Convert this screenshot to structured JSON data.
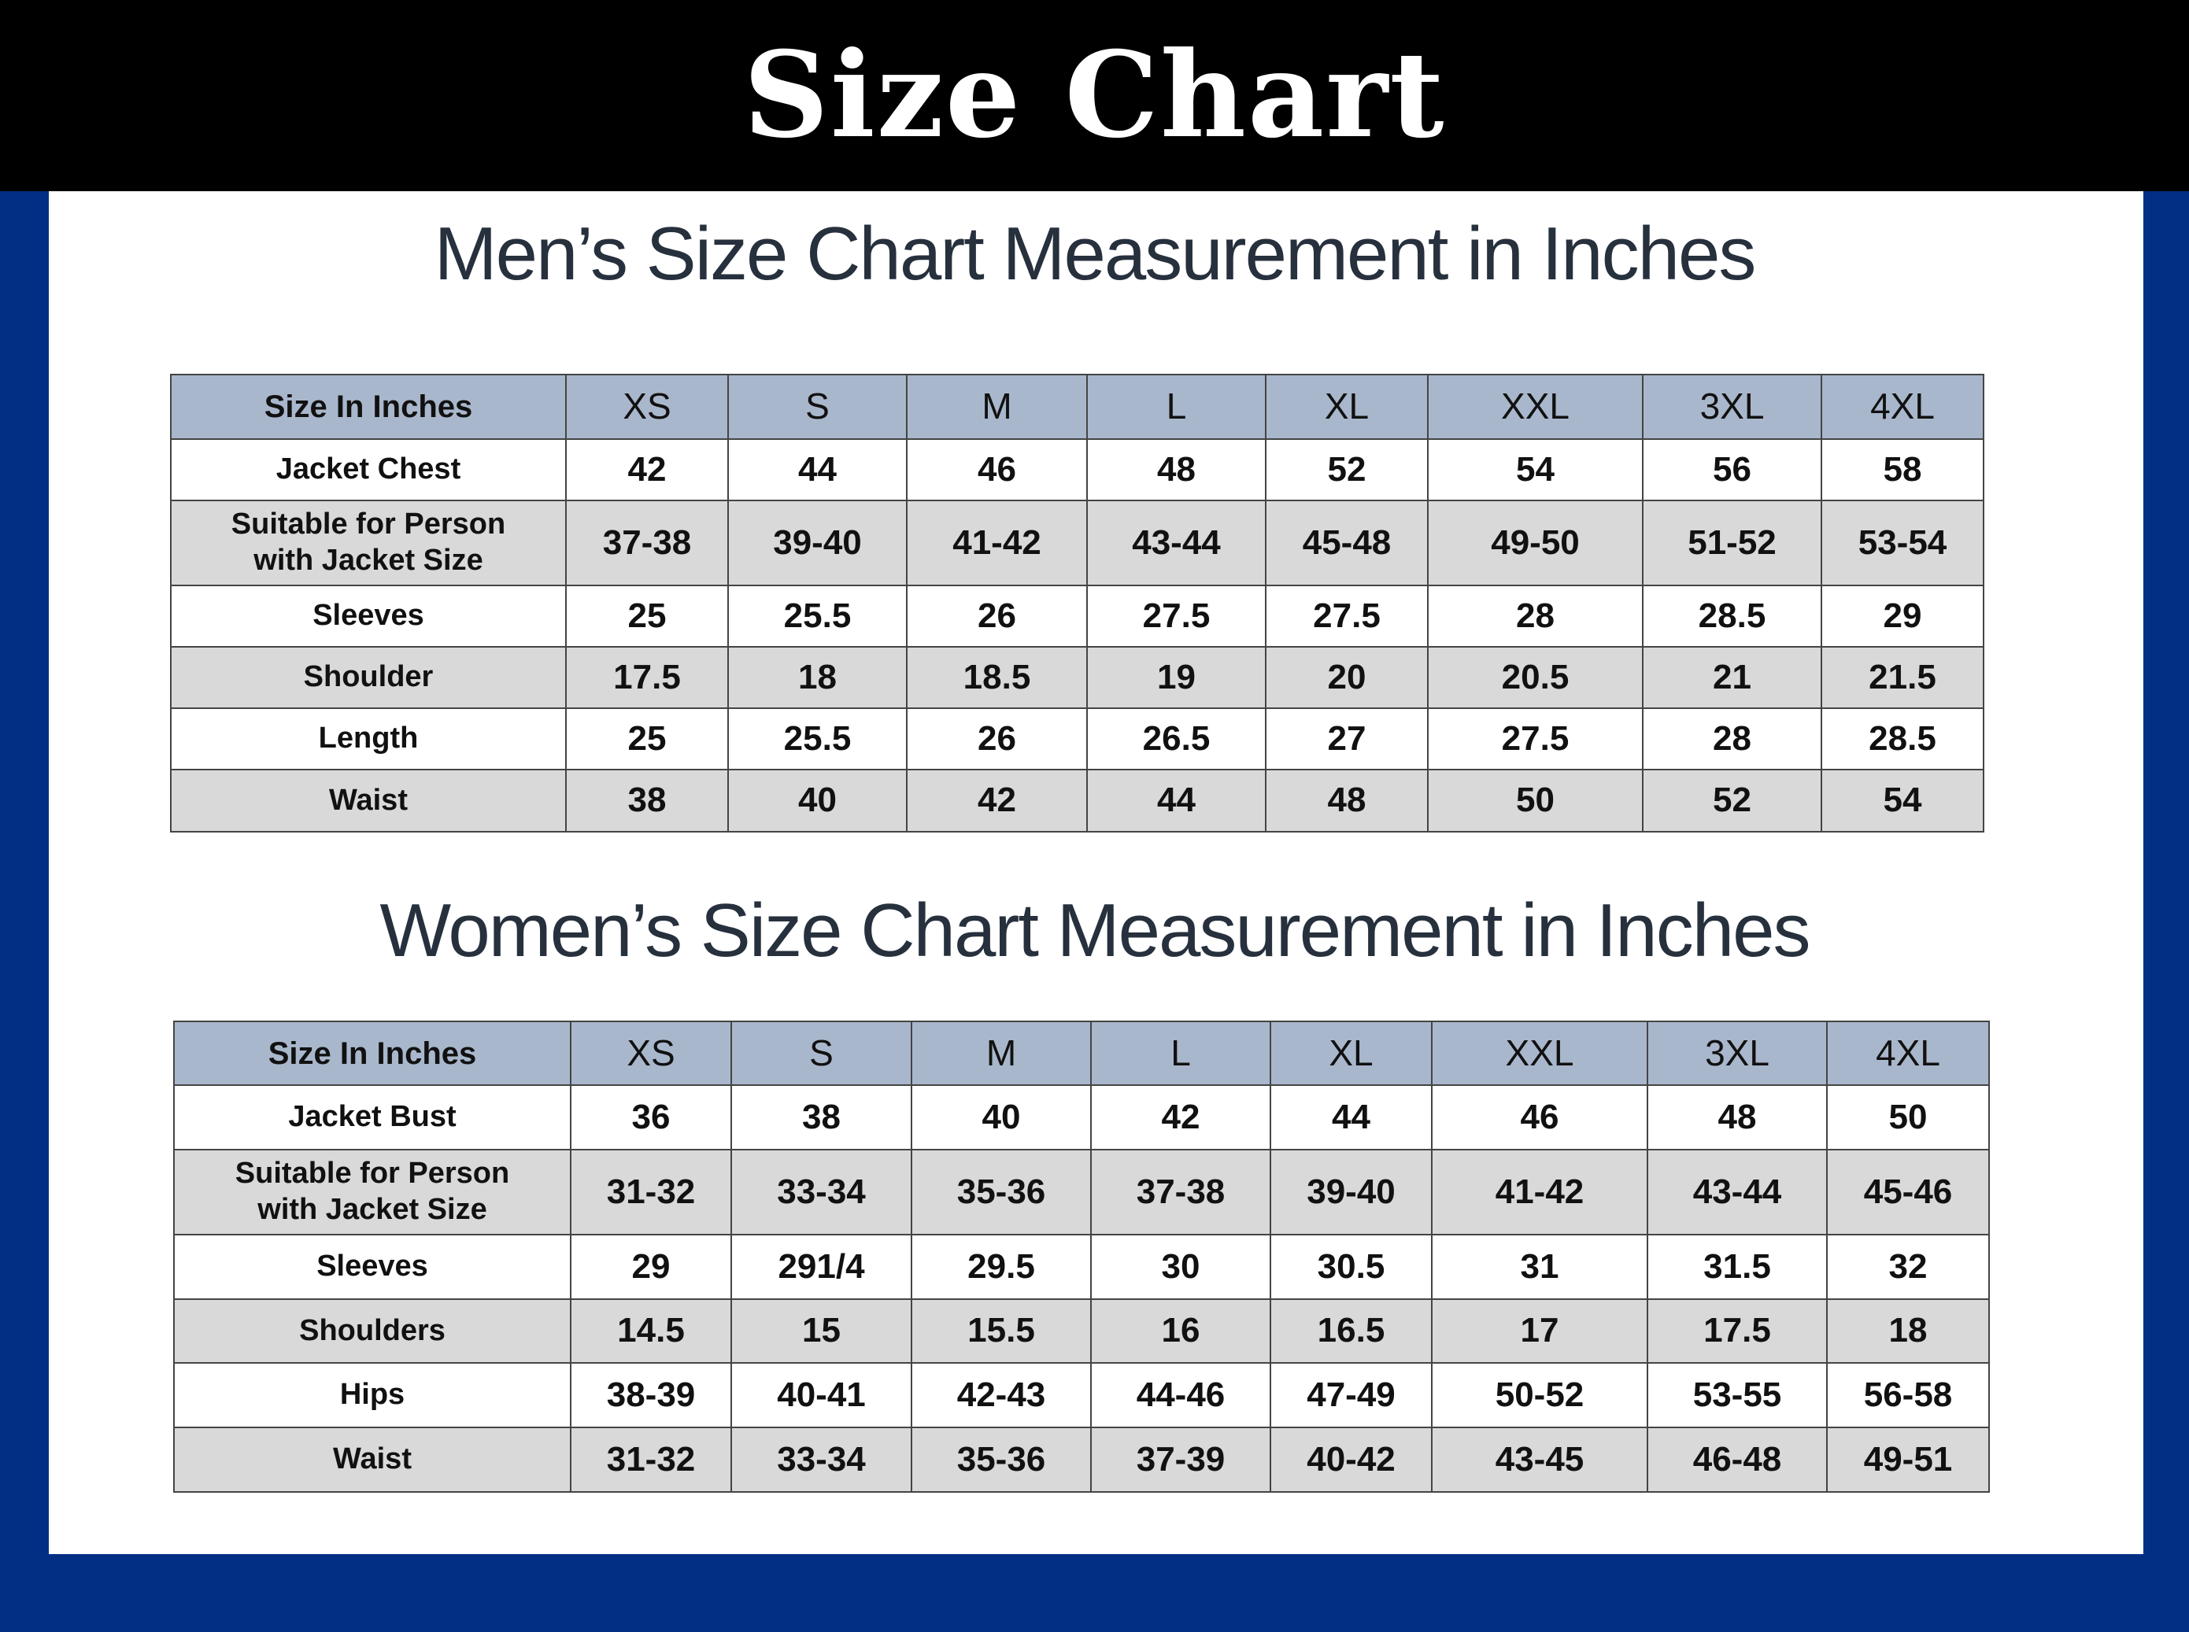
{
  "header": {
    "title": "Size Chart"
  },
  "sections": [
    {
      "title": "Men’s Size Chart Measurement in Inches",
      "table": {
        "header": [
          "Size In Inches",
          "XS",
          "S",
          "M",
          "L",
          "XL",
          "XXL",
          "3XL",
          "4XL"
        ],
        "rows": [
          [
            "Jacket Chest",
            "42",
            "44",
            "46",
            "48",
            "52",
            "54",
            "56",
            "58"
          ],
          [
            "Suitable for Person with Jacket Size",
            "37-38",
            "39-40",
            "41-42",
            "43-44",
            "45-48",
            "49-50",
            "51-52",
            "53-54"
          ],
          [
            "Sleeves",
            "25",
            "25.5",
            "26",
            "27.5",
            "27.5",
            "28",
            "28.5",
            "29"
          ],
          [
            "Shoulder",
            "17.5",
            "18",
            "18.5",
            "19",
            "20",
            "20.5",
            "21",
            "21.5"
          ],
          [
            "Length",
            "25",
            "25.5",
            "26",
            "26.5",
            "27",
            "27.5",
            "28",
            "28.5"
          ],
          [
            "Waist",
            "38",
            "40",
            "42",
            "44",
            "48",
            "50",
            "52",
            "54"
          ]
        ]
      }
    },
    {
      "title": "Women’s Size Chart Measurement in Inches",
      "table": {
        "header": [
          "Size In Inches",
          "XS",
          "S",
          "M",
          "L",
          "XL",
          "XXL",
          "3XL",
          "4XL"
        ],
        "rows": [
          [
            "Jacket Bust",
            "36",
            "38",
            "40",
            "42",
            "44",
            "46",
            "48",
            "50"
          ],
          [
            "Suitable for Person with Jacket Size",
            "31-32",
            "33-34",
            "35-36",
            "37-38",
            "39-40",
            "41-42",
            "43-44",
            "45-46"
          ],
          [
            "Sleeves",
            "29",
            "291/4",
            "29.5",
            "30",
            "30.5",
            "31",
            "31.5",
            "32"
          ],
          [
            "Shoulders",
            "14.5",
            "15",
            "15.5",
            "16",
            "16.5",
            "17",
            "17.5",
            "18"
          ],
          [
            "Hips",
            "38-39",
            "40-41",
            "42-43",
            "44-46",
            "47-49",
            "50-52",
            "53-55",
            "56-58"
          ],
          [
            "Waist",
            "31-32",
            "33-34",
            "35-36",
            "37-39",
            "40-42",
            "43-45",
            "46-48",
            "49-51"
          ]
        ]
      }
    }
  ]
}
